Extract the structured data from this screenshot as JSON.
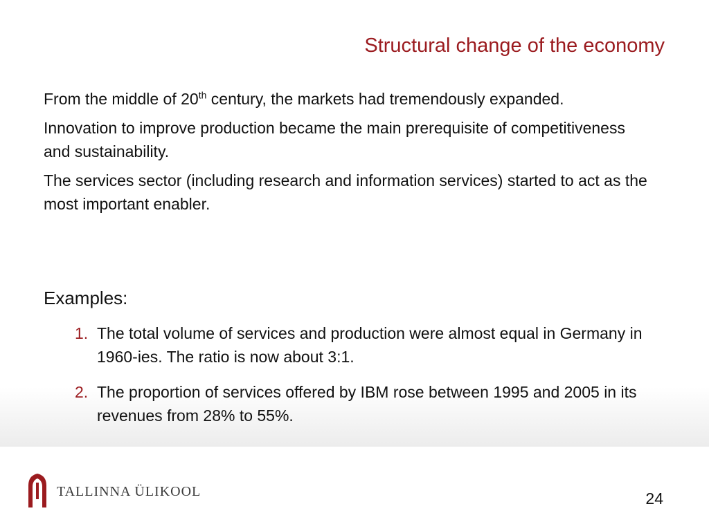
{
  "slide": {
    "title": "Structural change of the economy",
    "paragraphs": [
      {
        "before_sup": "From the middle of 20",
        "sup": "th",
        "after_sup": " century, the markets had tremendously expanded."
      },
      {
        "text": "Innovation to improve production became the main prerequisite of competitiveness and sustainability."
      },
      {
        "text": "The services sector (including research and information services) started to act as the most important enabler."
      }
    ],
    "examples_heading": "Examples:",
    "examples": [
      {
        "number": "1.",
        "text": "The total volume of services and production were almost equal in Germany in 1960-ies. The ratio is now about 3:1."
      },
      {
        "number": "2.",
        "text": "The proportion of services offered by IBM rose between 1995 and 2005 in its revenues from 28% to 55%."
      }
    ],
    "page_number": "24"
  },
  "footer": {
    "logo_text": "TALLINNA ÜLIKOOL",
    "logo_icon": "university-arch-icon"
  },
  "colors": {
    "accent": "#9b1b1f",
    "text": "#111111",
    "logo_text": "#3a3a3a"
  }
}
